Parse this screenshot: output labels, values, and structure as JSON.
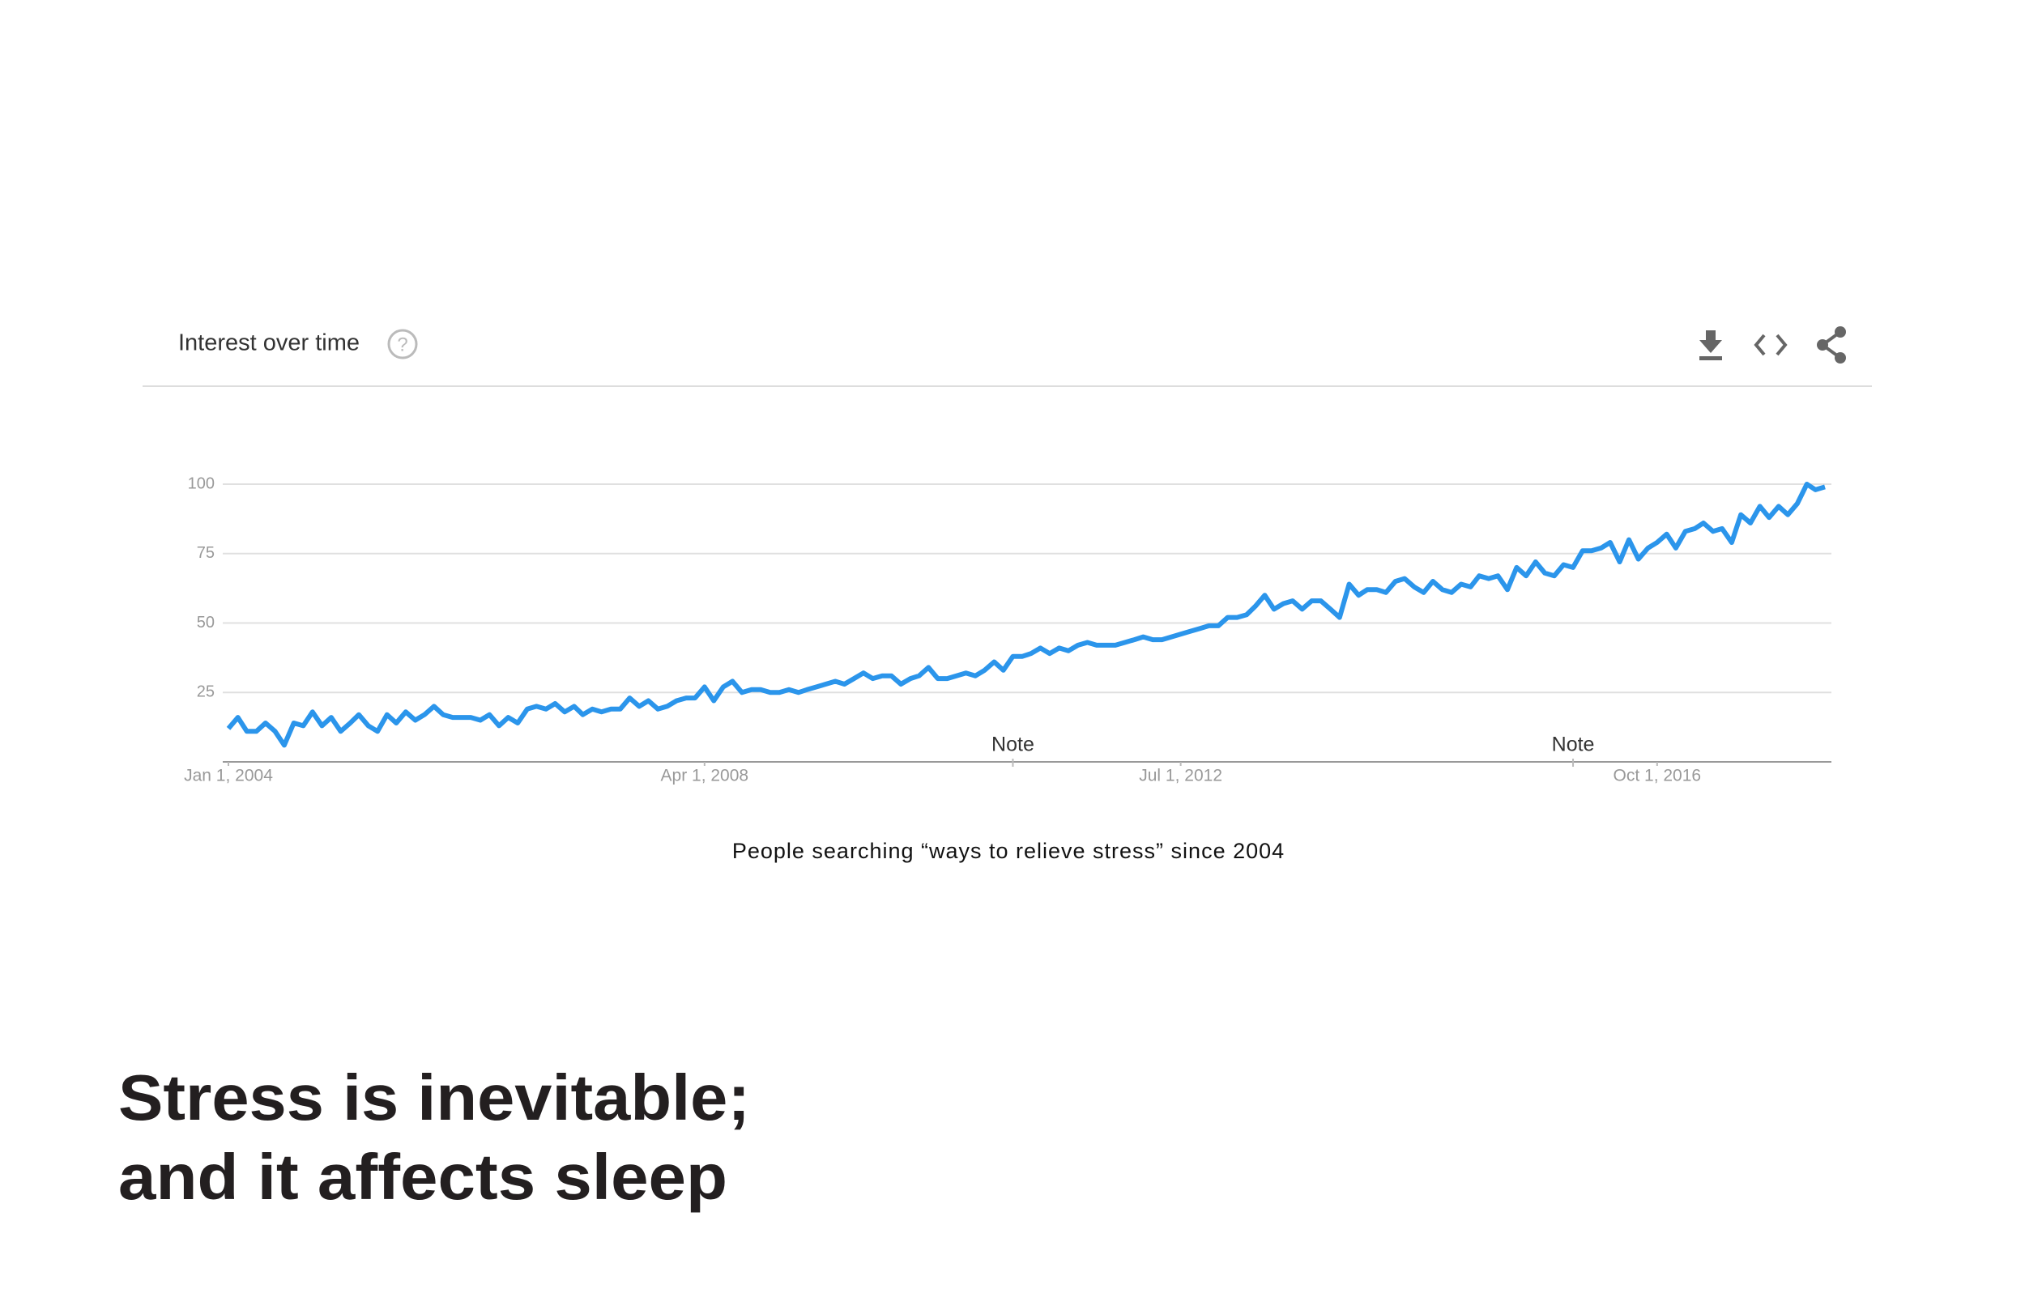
{
  "heading": [
    "Stress is inevitable;",
    "and it affects sleep"
  ],
  "caption": "People searching “ways to relieve stress” since 2004",
  "chart_data": {
    "type": "line",
    "title": "Interest over time",
    "x": [
      "2004-01-01",
      "2004-02-01",
      "2004-03-01",
      "2004-04-01",
      "2004-05-01",
      "2004-06-01",
      "2004-07-01",
      "2004-08-01",
      "2004-09-01",
      "2004-10-01",
      "2004-11-01",
      "2004-12-01",
      "2005-01-01",
      "2005-02-01",
      "2005-03-01",
      "2005-04-01",
      "2005-05-01",
      "2005-06-01",
      "2005-07-01",
      "2005-08-01",
      "2005-09-01",
      "2005-10-01",
      "2005-11-01",
      "2005-12-01",
      "2006-01-01",
      "2006-02-01",
      "2006-03-01",
      "2006-04-01",
      "2006-05-01",
      "2006-06-01",
      "2006-07-01",
      "2006-08-01",
      "2006-09-01",
      "2006-10-01",
      "2006-11-01",
      "2006-12-01",
      "2007-01-01",
      "2007-02-01",
      "2007-03-01",
      "2007-04-01",
      "2007-05-01",
      "2007-06-01",
      "2007-07-01",
      "2007-08-01",
      "2007-09-01",
      "2007-10-01",
      "2007-11-01",
      "2007-12-01",
      "2008-01-01",
      "2008-02-01",
      "2008-03-01",
      "2008-04-01",
      "2008-05-01",
      "2008-06-01",
      "2008-07-01",
      "2008-08-01",
      "2008-09-01",
      "2008-10-01",
      "2008-11-01",
      "2008-12-01",
      "2009-01-01",
      "2009-02-01",
      "2009-03-01",
      "2009-04-01",
      "2009-05-01",
      "2009-06-01",
      "2009-07-01",
      "2009-08-01",
      "2009-09-01",
      "2009-10-01",
      "2009-11-01",
      "2009-12-01",
      "2010-01-01",
      "2010-02-01",
      "2010-03-01",
      "2010-04-01",
      "2010-05-01",
      "2010-06-01",
      "2010-07-01",
      "2010-08-01",
      "2010-09-01",
      "2010-10-01",
      "2010-11-01",
      "2010-12-01",
      "2011-01-01",
      "2011-02-01",
      "2011-03-01",
      "2011-04-01",
      "2011-05-01",
      "2011-06-01",
      "2011-07-01",
      "2011-08-01",
      "2011-09-01",
      "2011-10-01",
      "2011-11-01",
      "2011-12-01",
      "2012-01-01",
      "2012-02-01",
      "2012-03-01",
      "2012-04-01",
      "2012-05-01",
      "2012-06-01",
      "2012-07-01",
      "2012-08-01",
      "2012-09-01",
      "2012-10-01",
      "2012-11-01",
      "2012-12-01",
      "2013-01-01",
      "2013-02-01",
      "2013-03-01",
      "2013-04-01",
      "2013-05-01",
      "2013-06-01",
      "2013-07-01",
      "2013-08-01",
      "2013-09-01",
      "2013-10-01",
      "2013-11-01",
      "2013-12-01",
      "2014-01-01",
      "2014-02-01",
      "2014-03-01",
      "2014-04-01",
      "2014-05-01",
      "2014-06-01",
      "2014-07-01",
      "2014-08-01",
      "2014-09-01",
      "2014-10-01",
      "2014-11-01",
      "2014-12-01",
      "2015-01-01",
      "2015-02-01",
      "2015-03-01",
      "2015-04-01",
      "2015-05-01",
      "2015-06-01",
      "2015-07-01",
      "2015-08-01",
      "2015-09-01",
      "2015-10-01",
      "2015-11-01",
      "2015-12-01",
      "2016-01-01",
      "2016-02-01",
      "2016-03-01",
      "2016-04-01",
      "2016-05-01",
      "2016-06-01",
      "2016-07-01",
      "2016-08-01",
      "2016-09-01",
      "2016-10-01",
      "2016-11-01",
      "2016-12-01",
      "2017-01-01",
      "2017-02-01",
      "2017-03-01",
      "2017-04-01",
      "2017-05-01",
      "2017-06-01",
      "2017-07-01",
      "2017-08-01",
      "2017-09-01",
      "2017-10-01",
      "2017-11-01",
      "2017-12-01",
      "2018-01-01",
      "2018-02-01",
      "2018-03-01",
      "2018-04-01"
    ],
    "values": [
      12,
      16,
      11,
      11,
      14,
      11,
      6,
      14,
      13,
      18,
      13,
      16,
      11,
      14,
      17,
      13,
      11,
      17,
      14,
      18,
      15,
      17,
      20,
      17,
      16,
      16,
      16,
      15,
      17,
      13,
      16,
      14,
      19,
      20,
      19,
      21,
      18,
      20,
      17,
      19,
      18,
      19,
      19,
      23,
      20,
      22,
      19,
      20,
      22,
      23,
      23,
      27,
      22,
      27,
      29,
      25,
      26,
      26,
      25,
      25,
      26,
      25,
      26,
      27,
      28,
      29,
      28,
      30,
      32,
      30,
      31,
      31,
      28,
      30,
      31,
      34,
      30,
      30,
      31,
      32,
      31,
      33,
      36,
      33,
      38,
      38,
      39,
      41,
      39,
      41,
      40,
      42,
      43,
      42,
      42,
      42,
      43,
      44,
      45,
      44,
      44,
      45,
      46,
      47,
      48,
      49,
      49,
      52,
      52,
      53,
      56,
      60,
      55,
      57,
      58,
      55,
      58,
      58,
      55,
      52,
      64,
      60,
      62,
      62,
      61,
      65,
      66,
      63,
      61,
      65,
      62,
      61,
      64,
      63,
      67,
      66,
      67,
      62,
      70,
      67,
      72,
      68,
      67,
      71,
      70,
      76,
      76,
      77,
      79,
      72,
      80,
      73,
      77,
      79,
      82,
      77,
      83,
      84,
      86,
      83,
      84,
      79,
      89,
      86,
      92,
      88,
      92,
      89,
      93,
      100,
      98,
      99
    ],
    "color": "#2b95eb",
    "xlim": [
      "2004-01-01",
      "2018-04-01"
    ],
    "ylim": [
      0,
      100
    ],
    "xticks": [
      {
        "value": "2004-01-01",
        "label": "Jan 1, 2004"
      },
      {
        "value": "2008-04-01",
        "label": "Apr 1, 2008"
      },
      {
        "value": "2012-07-01",
        "label": "Jul 1, 2012"
      },
      {
        "value": "2016-10-01",
        "label": "Oct 1, 2016"
      }
    ],
    "yticks": [
      25,
      50,
      75,
      100
    ],
    "grid": true,
    "annotations": [
      {
        "x": "2011-01-01",
        "label": "Note"
      },
      {
        "x": "2016-01-01",
        "label": "Note"
      }
    ]
  }
}
